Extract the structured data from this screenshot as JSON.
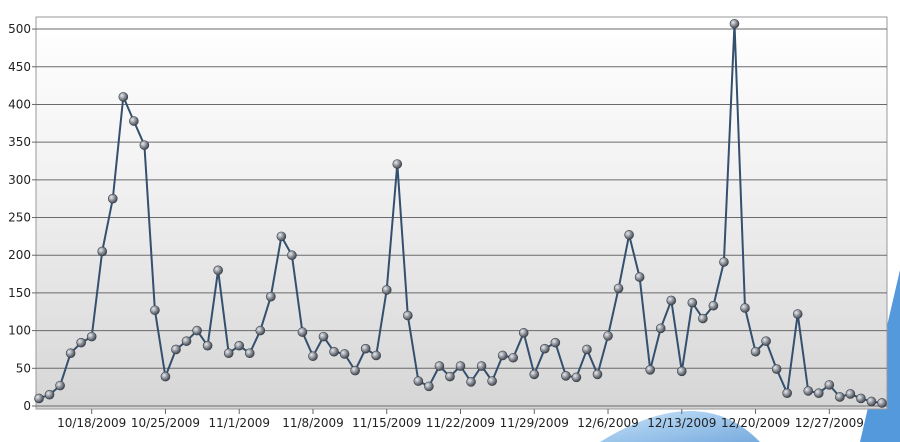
{
  "chart_data": {
    "type": "line",
    "x": [
      "10/13/2009",
      "10/14/2009",
      "10/15/2009",
      "10/16/2009",
      "10/17/2009",
      "10/18/2009",
      "10/19/2009",
      "10/20/2009",
      "10/21/2009",
      "10/22/2009",
      "10/23/2009",
      "10/24/2009",
      "10/25/2009",
      "10/26/2009",
      "10/27/2009",
      "10/28/2009",
      "10/29/2009",
      "10/30/2009",
      "10/31/2009",
      "11/1/2009",
      "11/2/2009",
      "11/3/2009",
      "11/4/2009",
      "11/5/2009",
      "11/6/2009",
      "11/7/2009",
      "11/8/2009",
      "11/9/2009",
      "11/10/2009",
      "11/11/2009",
      "11/12/2009",
      "11/13/2009",
      "11/14/2009",
      "11/15/2009",
      "11/16/2009",
      "11/17/2009",
      "11/18/2009",
      "11/19/2009",
      "11/20/2009",
      "11/21/2009",
      "11/22/2009",
      "11/23/2009",
      "11/24/2009",
      "11/25/2009",
      "11/26/2009",
      "11/27/2009",
      "11/28/2009",
      "11/29/2009",
      "11/30/2009",
      "12/1/2009",
      "12/2/2009",
      "12/3/2009",
      "12/4/2009",
      "12/5/2009",
      "12/6/2009",
      "12/7/2009",
      "12/8/2009",
      "12/9/2009",
      "12/10/2009",
      "12/11/2009",
      "12/12/2009",
      "12/13/2009",
      "12/14/2009",
      "12/15/2009",
      "12/16/2009",
      "12/17/2009",
      "12/18/2009",
      "12/19/2009",
      "12/20/2009",
      "12/21/2009",
      "12/22/2009",
      "12/23/2009",
      "12/24/2009",
      "12/25/2009",
      "12/26/2009",
      "12/27/2009",
      "12/28/2009",
      "12/29/2009",
      "12/30/2009",
      "12/31/2009",
      "1/1/2010"
    ],
    "values": [
      10,
      15,
      27,
      70,
      84,
      92,
      205,
      275,
      410,
      378,
      346,
      127,
      39,
      75,
      86,
      100,
      80,
      180,
      70,
      80,
      70,
      100,
      145,
      225,
      200,
      98,
      66,
      92,
      72,
      69,
      47,
      76,
      67,
      154,
      321,
      120,
      33,
      26,
      53,
      39,
      53,
      32,
      53,
      33,
      67,
      64,
      97,
      42,
      76,
      84,
      40,
      38,
      75,
      42,
      93,
      156,
      227,
      171,
      48,
      103,
      140,
      46,
      137,
      116,
      133,
      191,
      507,
      130,
      72,
      86,
      49,
      17,
      122,
      20,
      17,
      28,
      12,
      16,
      10,
      6,
      4
    ],
    "color": "#34506e",
    "xlim": [
      "10/13/2009",
      "1/1/2010"
    ],
    "xticks": [
      "10/18/2009",
      "10/25/2009",
      "11/1/2009",
      "11/8/2009",
      "11/15/2009",
      "11/22/2009",
      "11/29/2009",
      "12/6/2009",
      "12/13/2009",
      "12/20/2009",
      "12/27/2009"
    ],
    "ylim": [
      -4,
      516
    ],
    "yticks": [
      0,
      50,
      100,
      150,
      200,
      250,
      300,
      350,
      400,
      450,
      500
    ],
    "grid": true
  }
}
